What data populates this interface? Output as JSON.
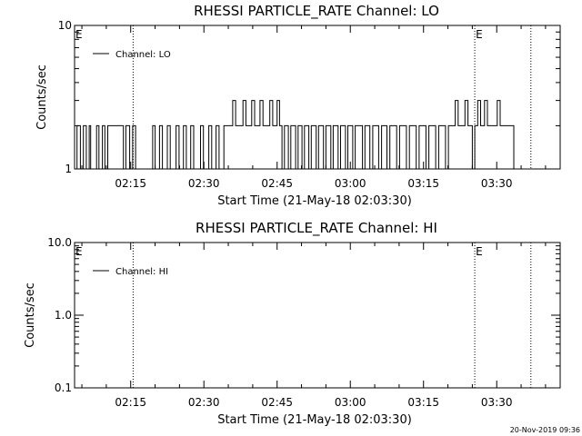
{
  "figure": {
    "timestamp": "20-Nov-2019 09:36",
    "event_marker_label": "E"
  },
  "chart_data": [
    {
      "type": "line",
      "title": "RHESSI PARTICLE_RATE Channel: LO",
      "xlabel": "Start Time (21-May-18 02:03:30)",
      "ylabel": "Counts/sec",
      "yscale": "log",
      "ylim": [
        1,
        10
      ],
      "xlim": [
        "02:03:30",
        "03:43:00"
      ],
      "x_ticks": [
        "02:15",
        "02:30",
        "02:45",
        "03:00",
        "03:15",
        "03:30"
      ],
      "y_ticks": [
        "1",
        "10"
      ],
      "grid": false,
      "legend": {
        "position": "top-left",
        "entries": [
          "Channel: LO"
        ]
      },
      "event_markers": [
        {
          "time": "02:03:30",
          "label": "E"
        },
        {
          "time": "02:15:30",
          "label": ""
        },
        {
          "time": "03:25:30",
          "label": "E"
        },
        {
          "time": "03:37:00",
          "label": ""
        }
      ],
      "series": [
        {
          "name": "Channel: LO",
          "x_minutes_from_start": [
            0,
            0.5,
            0.5,
            1.2,
            1.2,
            1.8,
            1.8,
            2.4,
            2.4,
            3.0,
            3.0,
            3.3,
            3.3,
            4.5,
            4.5,
            5.0,
            5.0,
            5.7,
            5.7,
            6.2,
            6.2,
            6.8,
            6.8,
            7.3,
            7.3,
            10.0,
            10.0,
            10.5,
            10.5,
            11.3,
            11.3,
            11.9,
            11.9,
            12.5,
            12.5,
            16.0,
            16.0,
            16.5,
            16.5,
            17.4,
            17.4,
            18.0,
            18.0,
            19.0,
            19.0,
            19.6,
            19.6,
            20.8,
            20.8,
            21.4,
            21.4,
            22.3,
            22.3,
            22.9,
            22.9,
            23.8,
            23.8,
            24.4,
            24.4,
            25.8,
            25.8,
            26.4,
            26.4,
            27.5,
            27.5,
            28.1,
            28.1,
            29.0,
            29.0,
            29.6,
            29.6,
            30.6,
            30.6,
            31.2,
            31.2,
            32.4,
            32.4,
            33.0,
            33.0,
            34.5,
            34.5,
            35.1,
            35.1,
            36.3,
            36.3,
            36.9,
            36.9,
            38.0,
            38.0,
            38.6,
            38.6,
            40.0,
            40.0,
            40.6,
            40.6,
            41.5,
            41.5,
            42.0,
            42.0,
            42.5,
            42.5,
            43.0,
            43.0,
            43.8,
            43.8,
            44.3,
            44.3,
            45.3,
            45.3,
            45.8,
            45.8,
            46.6,
            46.6,
            47.1,
            47.1,
            48.0,
            48.0,
            48.5,
            48.5,
            49.5,
            49.5,
            50.0,
            50.0,
            51.0,
            51.0,
            51.5,
            51.5,
            52.5,
            52.5,
            53.0,
            53.0,
            54.0,
            54.0,
            54.5,
            54.5,
            55.5,
            55.5,
            56.0,
            56.0,
            57.0,
            57.0,
            57.5,
            57.5,
            59.0,
            59.0,
            59.5,
            59.5,
            60.5,
            60.5,
            61.1,
            61.1,
            62.3,
            62.3,
            62.9,
            62.9,
            64.0,
            64.0,
            64.6,
            64.6,
            66.0,
            66.0,
            66.6,
            66.6,
            68.0,
            68.0,
            68.6,
            68.6,
            70.0,
            70.0,
            70.6,
            70.6,
            72.0,
            72.0,
            72.6,
            72.6,
            74.0,
            74.0,
            74.6,
            74.6,
            76.0,
            76.0,
            76.6,
            76.6,
            78.0,
            78.0,
            78.6,
            78.6,
            80.0,
            80.0,
            80.6,
            80.6,
            81.5,
            81.5,
            82.0,
            82.0,
            82.6,
            82.6,
            83.2,
            83.2,
            84.0,
            84.0,
            84.6,
            84.6,
            86.0,
            86.0,
            86.6,
            86.6,
            87.2,
            87.2,
            87.8,
            87.8,
            88.5,
            88.5,
            89.2,
            89.2,
            90.0,
            90.0,
            90.6,
            90.6,
            91.5,
            91.5,
            92.1,
            92.1,
            93.0,
            93.0,
            93.5
          ],
          "y_counts_per_sec": [
            1,
            1,
            2,
            2,
            1,
            1,
            2,
            2,
            1,
            1,
            2,
            2,
            1,
            1,
            2,
            2,
            1,
            1,
            2,
            2,
            1,
            1,
            2,
            2,
            2,
            2,
            1,
            1,
            2,
            2,
            1,
            1,
            2,
            2,
            1,
            1,
            2,
            2,
            1,
            1,
            2,
            2,
            1,
            1,
            2,
            2,
            1,
            1,
            2,
            2,
            1,
            1,
            2,
            2,
            1,
            1,
            2,
            2,
            1,
            1,
            2,
            2,
            1,
            1,
            2,
            2,
            1,
            1,
            2,
            2,
            1,
            1,
            2,
            2,
            2,
            2,
            3,
            3,
            2,
            2,
            3,
            3,
            2,
            2,
            3,
            3,
            2,
            2,
            3,
            3,
            2,
            2,
            3,
            3,
            2,
            2,
            3,
            3,
            2,
            2,
            1,
            1,
            2,
            2,
            1,
            1,
            2,
            2,
            1,
            1,
            2,
            2,
            1,
            1,
            2,
            2,
            1,
            1,
            2,
            2,
            1,
            1,
            2,
            2,
            1,
            1,
            2,
            2,
            1,
            1,
            2,
            2,
            1,
            1,
            2,
            2,
            1,
            1,
            2,
            2,
            1,
            1,
            2,
            2,
            1,
            1,
            2,
            2,
            1,
            1,
            2,
            2,
            1,
            1,
            2,
            2,
            1,
            1,
            2,
            2,
            1,
            1,
            2,
            2,
            1,
            1,
            2,
            2,
            1,
            1,
            2,
            2,
            1,
            1,
            2,
            2,
            1,
            1,
            2,
            2,
            1,
            1,
            2,
            2,
            3,
            3,
            2,
            2,
            3,
            3,
            2,
            2,
            1,
            1,
            2,
            2,
            3,
            3,
            2,
            2,
            3,
            3,
            2,
            2,
            2,
            2,
            3,
            3,
            2,
            2,
            2,
            2,
            2,
            2,
            2,
            2,
            1
          ]
        }
      ]
    },
    {
      "type": "line",
      "title": "RHESSI PARTICLE_RATE Channel: HI",
      "xlabel": "Start Time (21-May-18 02:03:30)",
      "ylabel": "Counts/sec",
      "yscale": "log",
      "ylim": [
        0.1,
        10
      ],
      "xlim": [
        "02:03:30",
        "03:43:00"
      ],
      "x_ticks": [
        "02:15",
        "02:30",
        "02:45",
        "03:00",
        "03:15",
        "03:30"
      ],
      "y_ticks": [
        "0.1",
        "1.0",
        "10.0"
      ],
      "grid": false,
      "legend": {
        "position": "top-left",
        "entries": [
          "Channel: HI"
        ]
      },
      "event_markers": [
        {
          "time": "02:03:30",
          "label": "E"
        },
        {
          "time": "02:15:30",
          "label": ""
        },
        {
          "time": "03:25:30",
          "label": "E"
        },
        {
          "time": "03:37:00",
          "label": ""
        }
      ],
      "series": [
        {
          "name": "Channel: HI",
          "x_minutes_from_start": [],
          "y_counts_per_sec": []
        }
      ]
    }
  ]
}
